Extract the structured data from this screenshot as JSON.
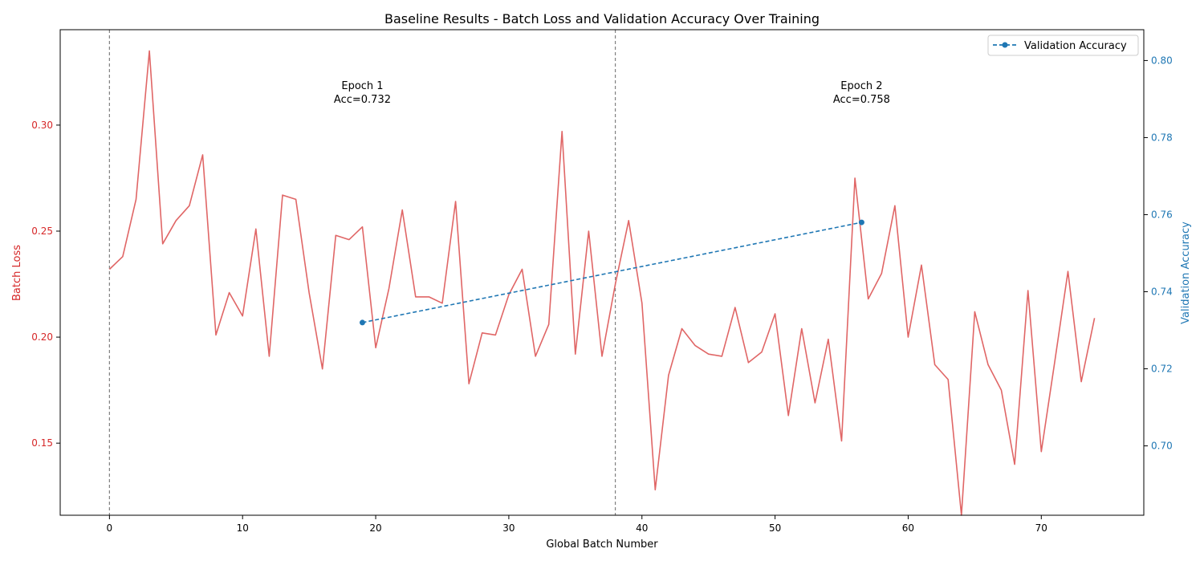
{
  "chart_data": {
    "type": "line",
    "title": "Baseline Results - Batch Loss and Validation Accuracy Over Training",
    "xlabel": "Global Batch Number",
    "ylabel_left": "Batch Loss",
    "ylabel_right": "Validation Accuracy",
    "xlim": [
      -3.7,
      77.7
    ],
    "ylim_left": [
      0.116,
      0.345
    ],
    "ylim_right": [
      0.682,
      0.808
    ],
    "x_ticks": [
      0,
      10,
      20,
      30,
      40,
      50,
      60,
      70
    ],
    "y_ticks_left": [
      0.15,
      0.2,
      0.25,
      0.3
    ],
    "y_ticks_left_labels": [
      "0.15",
      "0.20",
      "0.25",
      "0.30"
    ],
    "y_ticks_right": [
      0.7,
      0.72,
      0.74,
      0.76,
      0.78,
      0.8
    ],
    "y_ticks_right_labels": [
      "0.70",
      "0.72",
      "0.74",
      "0.76",
      "0.78",
      "0.80"
    ],
    "colors": {
      "loss": "#e06666",
      "accuracy": "#1f77b4",
      "left_axis": "#d62728",
      "right_axis": "#1f77b4",
      "epoch_line": "#808080"
    },
    "epoch_boundaries": [
      0,
      38
    ],
    "annotations": [
      {
        "line1": "Epoch 1",
        "line2": "Acc=0.732",
        "x": 19,
        "y": 0.314
      },
      {
        "line1": "Epoch 2",
        "line2": "Acc=0.758",
        "x": 56.5,
        "y": 0.314
      }
    ],
    "legend": {
      "placement": "top-right",
      "entries": [
        "Validation Accuracy"
      ]
    },
    "series": [
      {
        "axis": "left",
        "x": [
          0,
          1,
          2,
          3,
          4,
          5,
          6,
          7,
          8,
          9,
          10,
          11,
          12,
          13,
          14,
          15,
          16,
          17,
          18,
          19,
          20,
          21,
          22,
          23,
          24,
          25,
          26,
          27,
          28,
          29,
          30,
          31,
          32,
          33,
          34,
          35,
          36,
          37,
          38,
          39,
          40,
          41,
          42,
          43,
          44,
          45,
          46,
          47,
          48,
          49,
          50,
          51,
          52,
          53,
          54,
          55,
          56,
          57,
          58,
          59,
          60,
          61,
          62,
          63,
          64,
          65,
          66,
          67,
          68,
          69,
          70,
          71,
          72,
          73,
          74
        ],
        "values": [
          0.232,
          0.238,
          0.265,
          0.335,
          0.244,
          0.255,
          0.262,
          0.286,
          0.201,
          0.221,
          0.21,
          0.251,
          0.191,
          0.267,
          0.265,
          0.221,
          0.185,
          0.248,
          0.246,
          0.252,
          0.195,
          0.223,
          0.26,
          0.219,
          0.219,
          0.216,
          0.264,
          0.178,
          0.202,
          0.201,
          0.22,
          0.232,
          0.191,
          0.206,
          0.297,
          0.192,
          0.25,
          0.191,
          0.225,
          0.255,
          0.216,
          0.128,
          0.182,
          0.204,
          0.196,
          0.192,
          0.191,
          0.214,
          0.188,
          0.193,
          0.211,
          0.163,
          0.204,
          0.169,
          0.199,
          0.151,
          0.275,
          0.218,
          0.23,
          0.262,
          0.2,
          0.234,
          0.187,
          0.18,
          0.116,
          0.212,
          0.187,
          0.175,
          0.14,
          0.222,
          0.146,
          0.188,
          0.231,
          0.179,
          0.209
        ]
      },
      {
        "name": "Validation Accuracy",
        "axis": "right",
        "x": [
          19,
          56.5
        ],
        "values": [
          0.732,
          0.758
        ]
      }
    ]
  }
}
